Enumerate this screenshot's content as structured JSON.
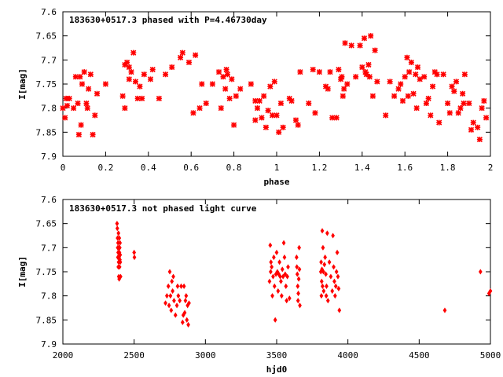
{
  "chart_data": [
    {
      "type": "scatter",
      "title": "183630+0517.3 phased with P=4.46730day",
      "xlabel": "phase",
      "ylabel": "I[mag]",
      "xlim": [
        0,
        2
      ],
      "ylim": [
        7.6,
        7.9
      ],
      "y_inverted": true,
      "x_ticks": [
        "0",
        "0.2",
        "0.4",
        "0.6",
        "0.8",
        "1",
        "1.2",
        "1.4",
        "1.6",
        "1.8",
        "2"
      ],
      "y_ticks": [
        "7.6",
        "7.65",
        "7.7",
        "7.75",
        "7.8",
        "7.85",
        "7.9"
      ],
      "marker": "cross",
      "color": "#ff0000",
      "grid": false,
      "points": [
        [
          0.0,
          7.8
        ],
        [
          0.01,
          7.82
        ],
        [
          0.015,
          7.78
        ],
        [
          0.02,
          7.795
        ],
        [
          0.03,
          7.78
        ],
        [
          0.05,
          7.8
        ],
        [
          0.06,
          7.735
        ],
        [
          0.07,
          7.79
        ],
        [
          0.075,
          7.855
        ],
        [
          0.08,
          7.735
        ],
        [
          0.085,
          7.835
        ],
        [
          0.09,
          7.75
        ],
        [
          0.1,
          7.725
        ],
        [
          0.11,
          7.79
        ],
        [
          0.115,
          7.8
        ],
        [
          0.12,
          7.76
        ],
        [
          0.13,
          7.73
        ],
        [
          0.14,
          7.855
        ],
        [
          0.15,
          7.815
        ],
        [
          0.16,
          7.77
        ],
        [
          0.2,
          7.75
        ],
        [
          0.28,
          7.775
        ],
        [
          0.29,
          7.8
        ],
        [
          0.29,
          7.71
        ],
        [
          0.3,
          7.705
        ],
        [
          0.31,
          7.74
        ],
        [
          0.31,
          7.715
        ],
        [
          0.32,
          7.725
        ],
        [
          0.33,
          7.685
        ],
        [
          0.34,
          7.745
        ],
        [
          0.35,
          7.78
        ],
        [
          0.36,
          7.755
        ],
        [
          0.37,
          7.78
        ],
        [
          0.38,
          7.73
        ],
        [
          0.41,
          7.74
        ],
        [
          0.42,
          7.72
        ],
        [
          0.45,
          7.78
        ],
        [
          0.48,
          7.73
        ],
        [
          0.51,
          7.715
        ],
        [
          0.55,
          7.695
        ],
        [
          0.56,
          7.685
        ],
        [
          0.59,
          7.705
        ],
        [
          0.61,
          7.81
        ],
        [
          0.62,
          7.69
        ],
        [
          0.64,
          7.8
        ],
        [
          0.65,
          7.75
        ],
        [
          0.67,
          7.79
        ],
        [
          0.7,
          7.75
        ],
        [
          0.73,
          7.725
        ],
        [
          0.74,
          7.8
        ],
        [
          0.75,
          7.735
        ],
        [
          0.76,
          7.76
        ],
        [
          0.765,
          7.72
        ],
        [
          0.77,
          7.73
        ],
        [
          0.78,
          7.78
        ],
        [
          0.79,
          7.74
        ],
        [
          0.8,
          7.835
        ],
        [
          0.81,
          7.775
        ],
        [
          0.83,
          7.76
        ],
        [
          0.88,
          7.75
        ],
        [
          0.9,
          7.825
        ],
        [
          0.9,
          7.785
        ],
        [
          0.91,
          7.8
        ],
        [
          0.92,
          7.785
        ],
        [
          0.93,
          7.82
        ],
        [
          0.94,
          7.775
        ],
        [
          0.95,
          7.84
        ],
        [
          0.96,
          7.805
        ],
        [
          0.97,
          7.755
        ],
        [
          0.98,
          7.815
        ],
        [
          0.99,
          7.745
        ],
        [
          1.0,
          7.815
        ],
        [
          1.01,
          7.85
        ],
        [
          1.02,
          7.79
        ],
        [
          1.03,
          7.84
        ],
        [
          1.06,
          7.78
        ],
        [
          1.07,
          7.785
        ],
        [
          1.09,
          7.825
        ],
        [
          1.1,
          7.835
        ],
        [
          1.11,
          7.725
        ],
        [
          1.15,
          7.79
        ],
        [
          1.17,
          7.72
        ],
        [
          1.18,
          7.81
        ],
        [
          1.2,
          7.725
        ],
        [
          1.23,
          7.755
        ],
        [
          1.24,
          7.76
        ],
        [
          1.25,
          7.725
        ],
        [
          1.26,
          7.82
        ],
        [
          1.28,
          7.82
        ],
        [
          1.29,
          7.72
        ],
        [
          1.3,
          7.74
        ],
        [
          1.305,
          7.735
        ],
        [
          1.31,
          7.775
        ],
        [
          1.315,
          7.76
        ],
        [
          1.32,
          7.665
        ],
        [
          1.33,
          7.75
        ],
        [
          1.35,
          7.67
        ],
        [
          1.37,
          7.735
        ],
        [
          1.39,
          7.67
        ],
        [
          1.4,
          7.715
        ],
        [
          1.41,
          7.655
        ],
        [
          1.415,
          7.725
        ],
        [
          1.42,
          7.73
        ],
        [
          1.43,
          7.71
        ],
        [
          1.435,
          7.735
        ],
        [
          1.44,
          7.65
        ],
        [
          1.45,
          7.775
        ],
        [
          1.46,
          7.68
        ],
        [
          1.47,
          7.745
        ],
        [
          1.51,
          7.815
        ],
        [
          1.53,
          7.745
        ],
        [
          1.55,
          7.775
        ],
        [
          1.57,
          7.76
        ],
        [
          1.58,
          7.75
        ],
        [
          1.59,
          7.785
        ],
        [
          1.6,
          7.735
        ],
        [
          1.61,
          7.695
        ],
        [
          1.615,
          7.775
        ],
        [
          1.62,
          7.725
        ],
        [
          1.63,
          7.705
        ],
        [
          1.64,
          7.77
        ],
        [
          1.65,
          7.73
        ],
        [
          1.655,
          7.8
        ],
        [
          1.66,
          7.715
        ],
        [
          1.67,
          7.74
        ],
        [
          1.69,
          7.735
        ],
        [
          1.7,
          7.79
        ],
        [
          1.71,
          7.78
        ],
        [
          1.72,
          7.815
        ],
        [
          1.73,
          7.755
        ],
        [
          1.74,
          7.725
        ],
        [
          1.75,
          7.73
        ],
        [
          1.76,
          7.83
        ],
        [
          1.78,
          7.73
        ],
        [
          1.8,
          7.79
        ],
        [
          1.81,
          7.81
        ],
        [
          1.82,
          7.755
        ],
        [
          1.83,
          7.765
        ],
        [
          1.84,
          7.745
        ],
        [
          1.85,
          7.81
        ],
        [
          1.86,
          7.8
        ],
        [
          1.87,
          7.77
        ],
        [
          1.875,
          7.79
        ],
        [
          1.88,
          7.73
        ],
        [
          1.9,
          7.79
        ],
        [
          1.91,
          7.845
        ],
        [
          1.92,
          7.83
        ],
        [
          1.94,
          7.84
        ],
        [
          1.95,
          7.865
        ],
        [
          1.96,
          7.8
        ],
        [
          1.97,
          7.785
        ],
        [
          1.98,
          7.82
        ]
      ]
    },
    {
      "type": "scatter",
      "title": "183630+0517.3 not phased light curve",
      "xlabel": "hjd0",
      "ylabel": "I[mag]",
      "xlim": [
        2000,
        5000
      ],
      "ylim": [
        7.6,
        7.9
      ],
      "y_inverted": true,
      "x_ticks": [
        "2000",
        "2500",
        "3000",
        "3500",
        "4000",
        "4500",
        "5000"
      ],
      "y_ticks": [
        "7.6",
        "7.65",
        "7.7",
        "7.75",
        "7.8",
        "7.85",
        "7.9"
      ],
      "marker": "diamond",
      "color": "#ff0000",
      "grid": false,
      "points": [
        [
          2380,
          7.65
        ],
        [
          2382,
          7.66
        ],
        [
          2384,
          7.68
        ],
        [
          2385,
          7.7
        ],
        [
          2386,
          7.72
        ],
        [
          2387,
          7.69
        ],
        [
          2388,
          7.71
        ],
        [
          2389,
          7.74
        ],
        [
          2390,
          7.67
        ],
        [
          2391,
          7.73
        ],
        [
          2392,
          7.76
        ],
        [
          2393,
          7.7
        ],
        [
          2394,
          7.72
        ],
        [
          2395,
          7.765
        ],
        [
          2396,
          7.68
        ],
        [
          2397,
          7.71
        ],
        [
          2398,
          7.74
        ],
        [
          2399,
          7.7
        ],
        [
          2400,
          7.725
        ],
        [
          2401,
          7.69
        ],
        [
          2402,
          7.715
        ],
        [
          2403,
          7.73
        ],
        [
          2405,
          7.76
        ],
        [
          2500,
          7.71
        ],
        [
          2502,
          7.72
        ],
        [
          2720,
          7.815
        ],
        [
          2730,
          7.8
        ],
        [
          2740,
          7.78
        ],
        [
          2745,
          7.82
        ],
        [
          2750,
          7.75
        ],
        [
          2755,
          7.8
        ],
        [
          2760,
          7.83
        ],
        [
          2765,
          7.77
        ],
        [
          2770,
          7.79
        ],
        [
          2775,
          7.76
        ],
        [
          2780,
          7.81
        ],
        [
          2790,
          7.84
        ],
        [
          2800,
          7.82
        ],
        [
          2805,
          7.78
        ],
        [
          2810,
          7.8
        ],
        [
          2820,
          7.81
        ],
        [
          2830,
          7.78
        ],
        [
          2840,
          7.855
        ],
        [
          2845,
          7.84
        ],
        [
          2850,
          7.78
        ],
        [
          2855,
          7.835
        ],
        [
          2860,
          7.81
        ],
        [
          2865,
          7.8
        ],
        [
          2870,
          7.85
        ],
        [
          2875,
          7.82
        ],
        [
          2880,
          7.86
        ],
        [
          2885,
          7.815
        ],
        [
          3450,
          7.77
        ],
        [
          3455,
          7.695
        ],
        [
          3458,
          7.75
        ],
        [
          3460,
          7.73
        ],
        [
          3465,
          7.74
        ],
        [
          3470,
          7.8
        ],
        [
          3475,
          7.76
        ],
        [
          3480,
          7.72
        ],
        [
          3485,
          7.78
        ],
        [
          3490,
          7.85
        ],
        [
          3495,
          7.755
        ],
        [
          3500,
          7.71
        ],
        [
          3505,
          7.75
        ],
        [
          3510,
          7.79
        ],
        [
          3515,
          7.755
        ],
        [
          3520,
          7.73
        ],
        [
          3525,
          7.76
        ],
        [
          3530,
          7.77
        ],
        [
          3535,
          7.8
        ],
        [
          3540,
          7.745
        ],
        [
          3545,
          7.76
        ],
        [
          3550,
          7.69
        ],
        [
          3555,
          7.72
        ],
        [
          3560,
          7.755
        ],
        [
          3565,
          7.78
        ],
        [
          3570,
          7.81
        ],
        [
          3575,
          7.76
        ],
        [
          3580,
          7.74
        ],
        [
          3590,
          7.805
        ],
        [
          3640,
          7.72
        ],
        [
          3642,
          7.74
        ],
        [
          3645,
          7.755
        ],
        [
          3648,
          7.78
        ],
        [
          3650,
          7.81
        ],
        [
          3652,
          7.795
        ],
        [
          3655,
          7.765
        ],
        [
          3658,
          7.7
        ],
        [
          3660,
          7.745
        ],
        [
          3663,
          7.82
        ],
        [
          3810,
          7.75
        ],
        [
          3812,
          7.73
        ],
        [
          3814,
          7.8
        ],
        [
          3816,
          7.77
        ],
        [
          3818,
          7.745
        ],
        [
          3820,
          7.665
        ],
        [
          3822,
          7.78
        ],
        [
          3825,
          7.7
        ],
        [
          3828,
          7.75
        ],
        [
          3830,
          7.79
        ],
        [
          3835,
          7.735
        ],
        [
          3840,
          7.72
        ],
        [
          3845,
          7.755
        ],
        [
          3848,
          7.8
        ],
        [
          3850,
          7.78
        ],
        [
          3855,
          7.67
        ],
        [
          3860,
          7.81
        ],
        [
          3870,
          7.73
        ],
        [
          3880,
          7.76
        ],
        [
          3890,
          7.79
        ],
        [
          3895,
          7.675
        ],
        [
          3900,
          7.74
        ],
        [
          3905,
          7.77
        ],
        [
          3910,
          7.8
        ],
        [
          3915,
          7.78
        ],
        [
          3920,
          7.75
        ],
        [
          3925,
          7.71
        ],
        [
          3930,
          7.76
        ],
        [
          3935,
          7.785
        ],
        [
          3940,
          7.83
        ],
        [
          4680,
          7.83
        ],
        [
          4930,
          7.75
        ],
        [
          4990,
          7.795
        ],
        [
          5000,
          7.79
        ]
      ]
    }
  ]
}
